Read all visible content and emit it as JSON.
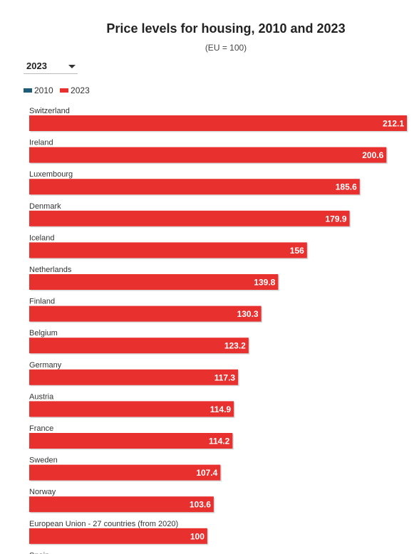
{
  "header": {
    "title": "Price levels for housing, 2010 and 2023",
    "subtitle": "(EU = 100)"
  },
  "year_select": {
    "value": "2023"
  },
  "legend": {
    "items": [
      {
        "label": "2010",
        "color": "#1f5c7a"
      },
      {
        "label": "2023",
        "color": "#e8302f"
      }
    ]
  },
  "chart_data": {
    "type": "bar",
    "orientation": "horizontal",
    "title": "Price levels for housing, 2010 and 2023",
    "subtitle": "(EU = 100)",
    "categories": [
      "Switzerland",
      "Ireland",
      "Luxembourg",
      "Denmark",
      "Iceland",
      "Netherlands",
      "Finland",
      "Belgium",
      "Germany",
      "Austria",
      "France",
      "Sweden",
      "Norway",
      "European Union - 27 countries (from 2020)",
      "Spain"
    ],
    "series": [
      {
        "name": "2023",
        "color": "#e8302f",
        "values": [
          212.1,
          200.6,
          185.6,
          179.9,
          156,
          139.8,
          130.3,
          123.2,
          117.3,
          114.9,
          114.2,
          107.4,
          103.6,
          100,
          null
        ]
      }
    ],
    "value_labels": [
      "212.1",
      "200.6",
      "185.6",
      "179.9",
      "156",
      "139.8",
      "130.3",
      "123.2",
      "117.3",
      "114.9",
      "114.2",
      "107.4",
      "103.6",
      "100",
      ""
    ],
    "legend": [
      "2010",
      "2023"
    ],
    "grid": false
  }
}
